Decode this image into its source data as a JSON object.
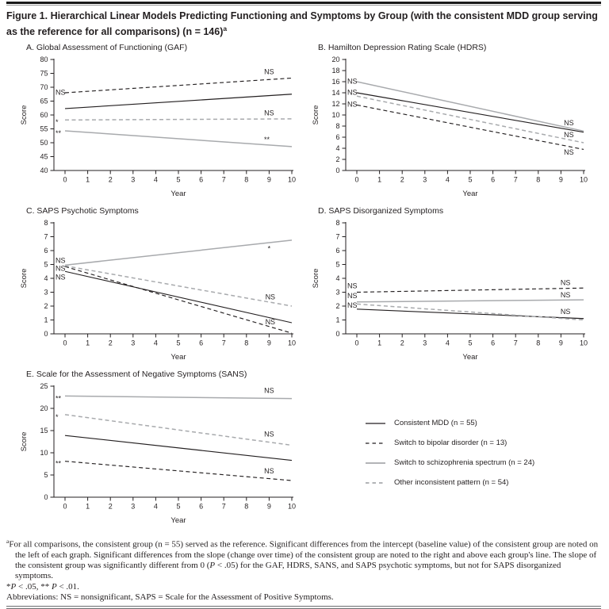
{
  "header": {
    "title_parts": [
      {
        "t": "Figure 1. Hierarchical Linear Models Predicting Functioning and Symptoms by Group (with the consistent MDD group serving as the reference for all comparisons) (n = 146)"
      },
      {
        "t": "a",
        "sup": true
      }
    ]
  },
  "colors": {
    "black": "#231f20",
    "gray": "#a8aaad",
    "asterisk": "#6d6e71"
  },
  "legend": [
    {
      "label": "Consistent MDD (n = 55)",
      "style": "black-solid"
    },
    {
      "label": "Switch to bipolar disorder (n = 13)",
      "style": "black-dashed"
    },
    {
      "label": "Switch to schizophrenia spectrum (n = 24)",
      "style": "gray-solid"
    },
    {
      "label": "Other inconsistent pattern (n = 54)",
      "style": "gray-dashed"
    }
  ],
  "chart_data": [
    {
      "id": "A",
      "type": "line",
      "title": "A. Global Assessment of Functioning (GAF)",
      "xlabel": "Year",
      "ylabel": "Score",
      "xlim": [
        0,
        10
      ],
      "ylim": [
        40,
        80
      ],
      "xticks": [
        0,
        1,
        2,
        3,
        4,
        5,
        6,
        7,
        8,
        9,
        10
      ],
      "yticks": [
        40,
        45,
        50,
        55,
        60,
        65,
        70,
        75,
        80
      ],
      "series": [
        {
          "name": "Consistent MDD",
          "style": "black-solid",
          "x": [
            0,
            10
          ],
          "y": [
            62.3,
            67.5
          ]
        },
        {
          "name": "Switch to bipolar disorder",
          "style": "black-dashed",
          "x": [
            0,
            10
          ],
          "y": [
            68.0,
            73.3
          ]
        },
        {
          "name": "Switch to schizophrenia spectrum",
          "style": "gray-solid",
          "x": [
            0,
            10
          ],
          "y": [
            54.3,
            48.6
          ]
        },
        {
          "name": "Other inconsistent pattern",
          "style": "gray-dashed",
          "x": [
            0,
            10
          ],
          "y": [
            58.2,
            58.6
          ]
        }
      ],
      "annotations": [
        {
          "text": "NS",
          "side": "left",
          "y": 68.2
        },
        {
          "text": "*",
          "side": "left",
          "y": 58.2
        },
        {
          "text": "**",
          "side": "left",
          "y": 54.2
        },
        {
          "text": "NS",
          "side": "right",
          "x": 9.0,
          "y": 75.6
        },
        {
          "text": "NS",
          "side": "right",
          "x": 9.0,
          "y": 60.7
        },
        {
          "text": "**",
          "side": "right",
          "x": 8.9,
          "y": 51.8
        }
      ]
    },
    {
      "id": "B",
      "type": "line",
      "title": "B. Hamilton Depression Rating Scale (HDRS)",
      "xlabel": "Year",
      "ylabel": "Score",
      "xlim": [
        0,
        10
      ],
      "ylim": [
        0,
        20
      ],
      "xticks": [
        0,
        1,
        2,
        3,
        4,
        5,
        6,
        7,
        8,
        9,
        10
      ],
      "yticks": [
        0,
        2,
        4,
        6,
        8,
        10,
        12,
        14,
        16,
        18,
        20
      ],
      "series": [
        {
          "name": "Consistent MDD",
          "style": "black-solid",
          "x": [
            0,
            10
          ],
          "y": [
            14.0,
            6.9
          ]
        },
        {
          "name": "Switch to bipolar disorder",
          "style": "black-dashed",
          "x": [
            0,
            10
          ],
          "y": [
            11.8,
            3.8
          ]
        },
        {
          "name": "Switch to schizophrenia spectrum",
          "style": "gray-solid",
          "x": [
            0,
            10
          ],
          "y": [
            16.0,
            7.1
          ]
        },
        {
          "name": "Other inconsistent pattern",
          "style": "gray-dashed",
          "x": [
            0,
            10
          ],
          "y": [
            13.4,
            5.0
          ]
        }
      ],
      "annotations": [
        {
          "text": "NS",
          "side": "left",
          "y": 16.1
        },
        {
          "text": "NS",
          "side": "left",
          "y": 14.1
        },
        {
          "text": "NS",
          "side": "left",
          "y": 11.9
        },
        {
          "text": "NS",
          "side": "right",
          "x": 9.35,
          "y": 8.6
        },
        {
          "text": "NS",
          "side": "right",
          "x": 9.35,
          "y": 6.4
        },
        {
          "text": "NS",
          "side": "right",
          "x": 9.35,
          "y": 3.3
        }
      ]
    },
    {
      "id": "C",
      "type": "line",
      "title": "C. SAPS Psychotic Symptoms",
      "xlabel": "Year",
      "ylabel": "Score",
      "xlim": [
        0,
        10
      ],
      "ylim": [
        0,
        8
      ],
      "xticks": [
        0,
        1,
        2,
        3,
        4,
        5,
        6,
        7,
        8,
        9,
        10
      ],
      "yticks": [
        0,
        1,
        2,
        3,
        4,
        5,
        6,
        7,
        8
      ],
      "series": [
        {
          "name": "Consistent MDD",
          "style": "black-solid",
          "x": [
            0,
            10
          ],
          "y": [
            4.5,
            0.8
          ]
        },
        {
          "name": "Switch to bipolar disorder",
          "style": "black-dashed",
          "x": [
            0,
            10
          ],
          "y": [
            4.85,
            0.05
          ]
        },
        {
          "name": "Switch to schizophrenia spectrum",
          "style": "gray-solid",
          "x": [
            0,
            10
          ],
          "y": [
            4.95,
            6.75
          ]
        },
        {
          "name": "Other inconsistent pattern",
          "style": "gray-dashed",
          "x": [
            0,
            10
          ],
          "y": [
            4.9,
            2.0
          ]
        }
      ],
      "annotations": [
        {
          "text": "NS",
          "side": "left",
          "y": 5.3
        },
        {
          "text": "NS",
          "side": "left",
          "y": 4.72
        },
        {
          "text": "NS",
          "side": "left",
          "y": 4.1
        },
        {
          "text": "*",
          "side": "right",
          "x": 9.0,
          "y": 6.3
        },
        {
          "text": "NS",
          "side": "right",
          "x": 9.05,
          "y": 2.65
        },
        {
          "text": "NS",
          "side": "right",
          "x": 9.05,
          "y": 0.85
        }
      ]
    },
    {
      "id": "D",
      "type": "line",
      "title": "D. SAPS Disorganized Symptoms",
      "xlabel": "Year",
      "ylabel": "Score",
      "xlim": [
        0,
        10
      ],
      "ylim": [
        0,
        8
      ],
      "xticks": [
        0,
        1,
        2,
        3,
        4,
        5,
        6,
        7,
        8,
        9,
        10
      ],
      "yticks": [
        0,
        1,
        2,
        3,
        4,
        5,
        6,
        7,
        8
      ],
      "series": [
        {
          "name": "Consistent MDD",
          "style": "black-solid",
          "x": [
            0,
            10
          ],
          "y": [
            1.78,
            1.1
          ]
        },
        {
          "name": "Switch to bipolar disorder",
          "style": "black-dashed",
          "x": [
            0,
            10
          ],
          "y": [
            3.0,
            3.3
          ]
        },
        {
          "name": "Switch to schizophrenia spectrum",
          "style": "gray-solid",
          "x": [
            0,
            10
          ],
          "y": [
            2.3,
            2.45
          ]
        },
        {
          "name": "Other inconsistent pattern",
          "style": "gray-dashed",
          "x": [
            0,
            10
          ],
          "y": [
            2.15,
            1.0
          ]
        }
      ],
      "annotations": [
        {
          "text": "NS",
          "side": "left",
          "y": 3.45
        },
        {
          "text": "NS",
          "side": "left",
          "y": 2.75
        },
        {
          "text": "NS",
          "side": "left",
          "y": 2.05
        },
        {
          "text": "NS",
          "side": "right",
          "x": 9.2,
          "y": 3.7
        },
        {
          "text": "NS",
          "side": "right",
          "x": 9.2,
          "y": 2.8
        },
        {
          "text": "NS",
          "side": "right",
          "x": 9.2,
          "y": 1.6
        }
      ]
    },
    {
      "id": "E",
      "type": "line",
      "title": "E. Scale for the Assessment of Negative Symptoms (SANS)",
      "xlabel": "Year",
      "ylabel": "Score",
      "xlim": [
        0,
        10
      ],
      "ylim": [
        0,
        25
      ],
      "xticks": [
        0,
        1,
        2,
        3,
        4,
        5,
        6,
        7,
        8,
        9,
        10
      ],
      "yticks": [
        0,
        5,
        10,
        15,
        20,
        25
      ],
      "series": [
        {
          "name": "Consistent MDD",
          "style": "black-solid",
          "x": [
            0,
            10
          ],
          "y": [
            13.9,
            8.3
          ]
        },
        {
          "name": "Switch to bipolar disorder",
          "style": "black-dashed",
          "x": [
            0,
            10
          ],
          "y": [
            8.1,
            3.75
          ]
        },
        {
          "name": "Switch to schizophrenia spectrum",
          "style": "gray-solid",
          "x": [
            0,
            10
          ],
          "y": [
            22.8,
            22.2
          ]
        },
        {
          "name": "Other inconsistent pattern",
          "style": "gray-dashed",
          "x": [
            0,
            10
          ],
          "y": [
            18.6,
            11.7
          ]
        }
      ],
      "annotations": [
        {
          "text": "**",
          "side": "left",
          "y": 22.7
        },
        {
          "text": "*",
          "side": "left",
          "y": 18.5
        },
        {
          "text": "**",
          "side": "left",
          "y": 8.0
        },
        {
          "text": "NS",
          "side": "right",
          "x": 9.0,
          "y": 24.0
        },
        {
          "text": "NS",
          "side": "right",
          "x": 9.0,
          "y": 14.2
        },
        {
          "text": "NS",
          "side": "right",
          "x": 9.0,
          "y": 5.9
        }
      ]
    }
  ],
  "footnotes": {
    "note_a_parts": [
      {
        "t": "a",
        "sup": true
      },
      {
        "t": "For all comparisons, the consistent group (n = 55) served as the reference. Significant differences from the intercept (baseline value) of the consistent group are noted on the left of each graph. Significant differences from the slope (change over time) of the consistent group are noted to the right and above each group's line. The slope of the consistent group was significantly different from 0 ("
      },
      {
        "t": "P",
        "i": true
      },
      {
        "t": " < .05) for the GAF, HDRS, SANS, and SAPS psychotic symptoms, but not for SAPS disorganized symptoms."
      }
    ],
    "significance_parts": [
      {
        "t": "*"
      },
      {
        "t": "P",
        "i": true
      },
      {
        "t": " < .05, ** "
      },
      {
        "t": "P",
        "i": true
      },
      {
        "t": " < .01."
      }
    ],
    "abbreviations_parts": [
      {
        "t": "Abbreviations: NS = nonsignificant, SAPS = Scale for the Assessment of Positive Symptoms."
      }
    ]
  }
}
